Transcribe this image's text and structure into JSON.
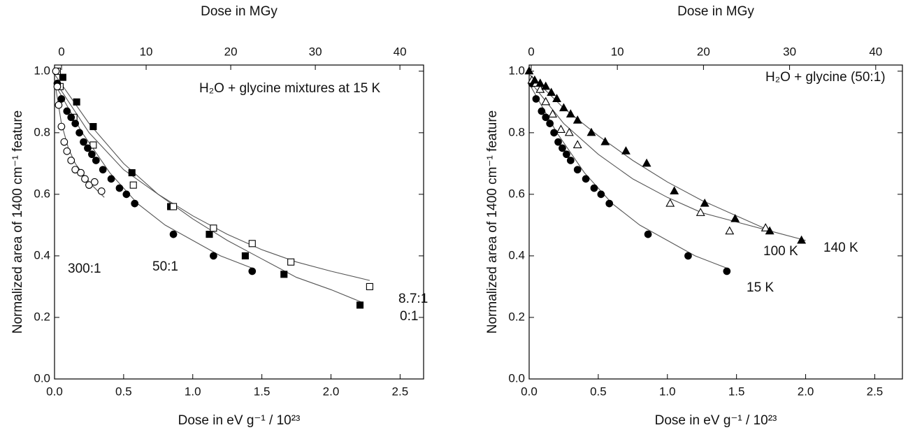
{
  "chart_data": [
    {
      "type": "scatter",
      "x_label": "Dose in eV g⁻¹ / 10²³",
      "x2_label": "Dose in MGy",
      "y_label": "Normalized area of 1400 cm⁻¹ feature",
      "annotation": "H₂O + glycine mixtures at 15 K",
      "xlim": [
        0,
        2.67
      ],
      "xticks": [
        {
          "value": 0,
          "label": "0.0"
        },
        0.5,
        {
          "value": 1,
          "label": "1.0"
        },
        1.5,
        {
          "value": 2,
          "label": "2.0"
        },
        2.5
      ],
      "x2lim": [
        -0.83,
        42.8
      ],
      "x2ticks": [
        0,
        10,
        20,
        30,
        40
      ],
      "ylim": [
        0,
        1.02
      ],
      "yticks": [
        {
          "value": 0,
          "label": "0.0"
        },
        0.2,
        0.4,
        0.6,
        0.8,
        {
          "value": 1,
          "label": "1.0"
        }
      ],
      "series": [
        {
          "name": "0:1",
          "color": "#000000",
          "marker": "square",
          "filled": true,
          "x": [
            0.06,
            0.16,
            0.28,
            0.56,
            0.84,
            1.12,
            1.38,
            1.66,
            2.21
          ],
          "values": [
            0.98,
            0.9,
            0.82,
            0.67,
            0.56,
            0.47,
            0.4,
            0.34,
            0.24
          ],
          "fit": {
            "x": [
              0,
              0.25,
              0.5,
              0.75,
              1.0,
              1.25,
              1.5,
              1.75,
              2.0,
              2.22
            ],
            "values": [
              0.99,
              0.83,
              0.7,
              0.6,
              0.52,
              0.45,
              0.39,
              0.33,
              0.29,
              0.25
            ]
          }
        },
        {
          "name": "8.7:1",
          "color": "#000000",
          "marker": "square",
          "filled": false,
          "x": [
            0.02,
            0.04,
            0.14,
            0.28,
            0.57,
            0.86,
            1.15,
            1.43,
            1.71,
            2.28
          ],
          "values": [
            1.0,
            0.95,
            0.85,
            0.76,
            0.63,
            0.56,
            0.49,
            0.44,
            0.38,
            0.3
          ],
          "fit": {
            "x": [
              0,
              0.25,
              0.5,
              0.75,
              1.0,
              1.25,
              1.5,
              1.75,
              2.0,
              2.28
            ],
            "values": [
              0.97,
              0.8,
              0.68,
              0.6,
              0.53,
              0.47,
              0.42,
              0.38,
              0.35,
              0.32
            ]
          }
        },
        {
          "name": "50:1",
          "color": "#000000",
          "marker": "circle",
          "filled": true,
          "x": [
            0.02,
            0.05,
            0.09,
            0.12,
            0.15,
            0.18,
            0.21,
            0.24,
            0.27,
            0.3,
            0.35,
            0.41,
            0.47,
            0.52,
            0.58,
            0.86,
            1.15,
            1.43
          ],
          "values": [
            0.96,
            0.91,
            0.87,
            0.85,
            0.83,
            0.8,
            0.77,
            0.75,
            0.73,
            0.71,
            0.68,
            0.65,
            0.62,
            0.6,
            0.57,
            0.47,
            0.4,
            0.35
          ],
          "fit": {
            "x": [
              0,
              0.2,
              0.4,
              0.6,
              0.8,
              1.0,
              1.2,
              1.43
            ],
            "values": [
              0.96,
              0.8,
              0.67,
              0.57,
              0.5,
              0.45,
              0.4,
              0.36
            ]
          }
        },
        {
          "name": "300:1",
          "color": "#000000",
          "marker": "circle",
          "filled": false,
          "x": [
            0.01,
            0.02,
            0.03,
            0.05,
            0.07,
            0.09,
            0.12,
            0.15,
            0.19,
            0.22,
            0.25,
            0.29,
            0.34
          ],
          "values": [
            1.0,
            0.95,
            0.89,
            0.82,
            0.77,
            0.74,
            0.71,
            0.68,
            0.67,
            0.65,
            0.63,
            0.64,
            0.61
          ],
          "fit": {
            "x": [
              0,
              0.05,
              0.1,
              0.15,
              0.2,
              0.27,
              0.36
            ],
            "values": [
              0.97,
              0.83,
              0.75,
              0.7,
              0.67,
              0.63,
              0.59
            ]
          }
        }
      ]
    },
    {
      "type": "scatter",
      "x_label": "Dose in eV g⁻¹ / 10²³",
      "x2_label": "Dose in MGy",
      "y_label": "Normalized area of 1400 cm⁻¹ feature",
      "annotation": "H₂O + glycine (50:1)",
      "xlim": [
        0,
        2.7
      ],
      "xticks": [
        {
          "value": 0,
          "label": "0.0"
        },
        0.5,
        {
          "value": 1,
          "label": "1.0"
        },
        1.5,
        {
          "value": 2,
          "label": "2.0"
        },
        2.5
      ],
      "x2lim": [
        -0.24,
        43.1
      ],
      "x2ticks": [
        0,
        10,
        20,
        30,
        40
      ],
      "ylim": [
        0,
        1.02
      ],
      "yticks": [
        {
          "value": 0,
          "label": "0.0"
        },
        0.2,
        0.4,
        0.6,
        0.8,
        {
          "value": 1,
          "label": "1.0"
        }
      ],
      "series": [
        {
          "name": "15 K",
          "color": "#000000",
          "marker": "circle",
          "filled": true,
          "x": [
            0.02,
            0.05,
            0.09,
            0.12,
            0.15,
            0.18,
            0.21,
            0.24,
            0.27,
            0.3,
            0.35,
            0.41,
            0.47,
            0.52,
            0.58,
            0.86,
            1.15,
            1.43
          ],
          "values": [
            0.96,
            0.91,
            0.87,
            0.85,
            0.83,
            0.8,
            0.77,
            0.75,
            0.73,
            0.71,
            0.68,
            0.65,
            0.62,
            0.6,
            0.57,
            0.47,
            0.4,
            0.35
          ],
          "fit": {
            "x": [
              0,
              0.2,
              0.4,
              0.6,
              0.8,
              1.0,
              1.2,
              1.43
            ],
            "values": [
              0.96,
              0.8,
              0.67,
              0.57,
              0.5,
              0.45,
              0.4,
              0.36
            ]
          }
        },
        {
          "name": "100 K",
          "color": "#000000",
          "marker": "triangle",
          "filled": false,
          "x": [
            0.02,
            0.05,
            0.08,
            0.12,
            0.17,
            0.23,
            0.29,
            0.35,
            1.02,
            1.24,
            1.45,
            1.71
          ],
          "values": [
            0.97,
            0.96,
            0.94,
            0.9,
            0.86,
            0.81,
            0.8,
            0.76,
            0.57,
            0.54,
            0.48,
            0.49
          ],
          "fit": {
            "x": [
              0,
              0.25,
              0.5,
              0.75,
              1.0,
              1.25,
              1.5,
              1.75
            ],
            "values": [
              0.97,
              0.83,
              0.73,
              0.65,
              0.59,
              0.54,
              0.51,
              0.48
            ]
          }
        },
        {
          "name": "140 K",
          "color": "#000000",
          "marker": "triangle",
          "filled": true,
          "x": [
            0,
            0.04,
            0.08,
            0.12,
            0.16,
            0.2,
            0.25,
            0.3,
            0.35,
            0.45,
            0.55,
            0.7,
            0.85,
            1.05,
            1.27,
            1.49,
            1.74,
            1.97
          ],
          "values": [
            1.0,
            0.97,
            0.96,
            0.95,
            0.93,
            0.91,
            0.88,
            0.86,
            0.84,
            0.8,
            0.77,
            0.74,
            0.7,
            0.61,
            0.57,
            0.52,
            0.48,
            0.45
          ],
          "fit": {
            "x": [
              0,
              0.25,
              0.5,
              0.75,
              1.0,
              1.25,
              1.5,
              1.75,
              2.0
            ],
            "values": [
              0.99,
              0.88,
              0.79,
              0.71,
              0.64,
              0.58,
              0.53,
              0.48,
              0.45
            ]
          }
        }
      ]
    }
  ]
}
